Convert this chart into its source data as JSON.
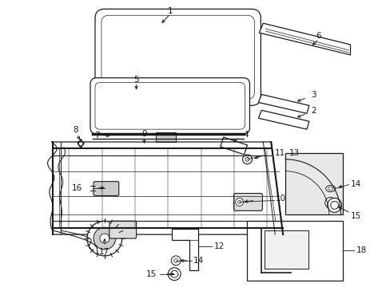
{
  "bg_color": "#ffffff",
  "line_color": "#1a1a1a",
  "gray_light": "#d0d0d0",
  "gray_mid": "#b0b0b0"
}
